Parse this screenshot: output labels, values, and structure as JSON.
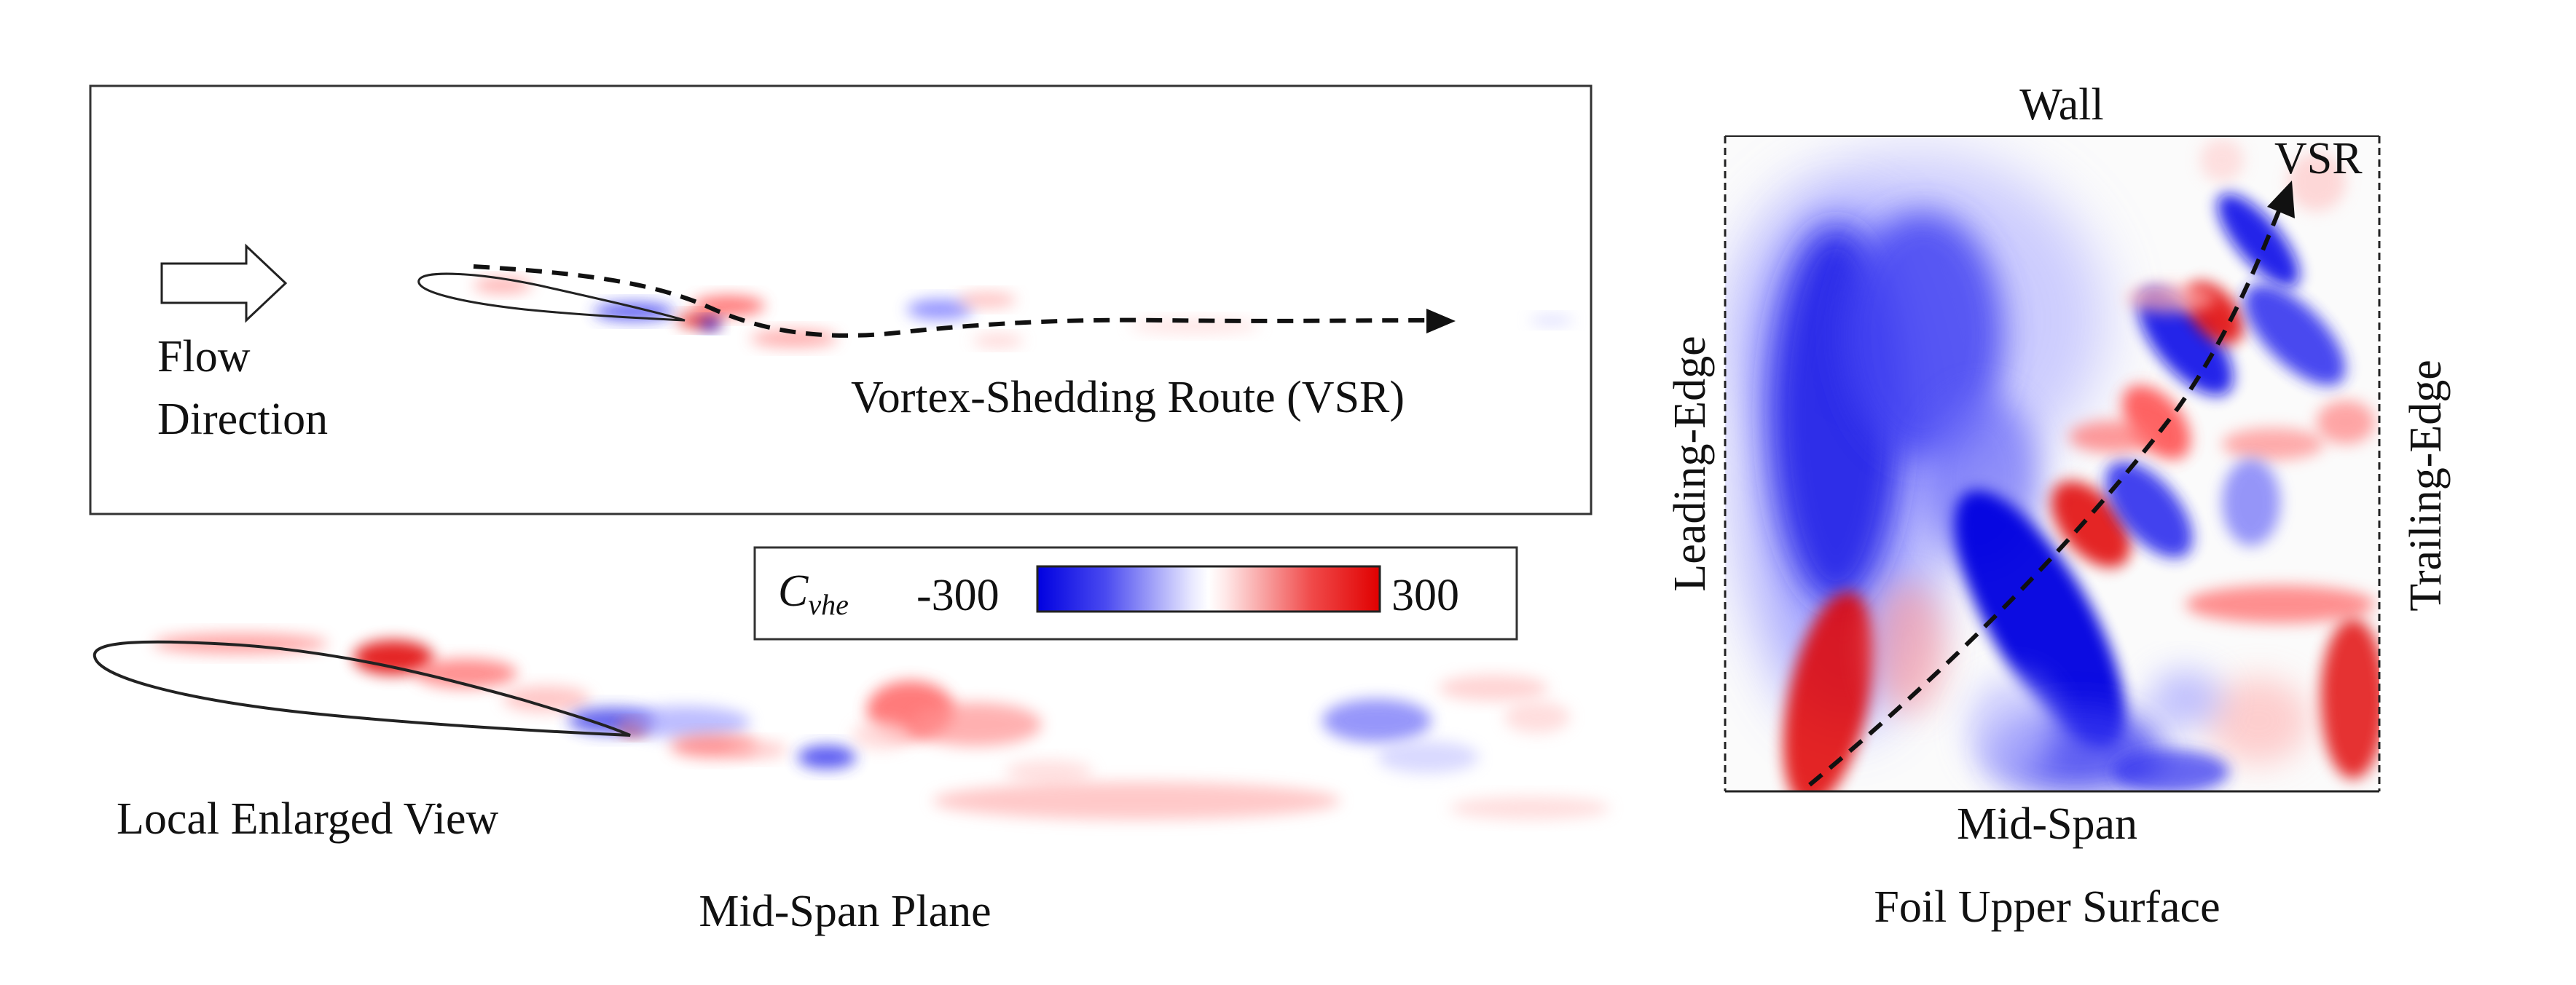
{
  "mid_span_panel": {
    "flow_label_line1": "Flow",
    "flow_label_line2": "Direction",
    "route_label": "Vortex-Shedding Route (VSR)",
    "local_view_label": "Local Enlarged View",
    "caption": "Mid-Span Plane"
  },
  "colorbar": {
    "symbol": "C",
    "symbol_subscript": "vhe",
    "min_label": "-300",
    "max_label": "300",
    "color_min": "#0000e0",
    "color_mid": "#ffffff",
    "color_max": "#e00000"
  },
  "surface_panel": {
    "top_label": "Wall",
    "bottom_label": "Mid-Span",
    "left_label": "Leading-Edge",
    "right_label": "Trailing-Edge",
    "route_label": "VSR",
    "caption": "Foil Upper Surface"
  }
}
